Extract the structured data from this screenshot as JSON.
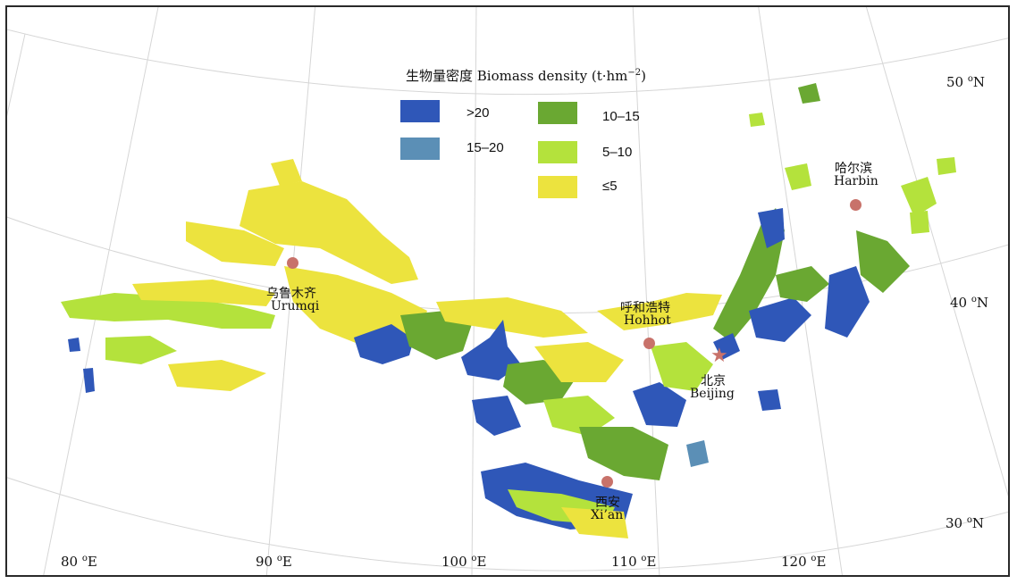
{
  "legend": {
    "title": "生物量密度 Biomass density (t·hm",
    "title_unit_sup": "−2",
    "title_close": ")",
    "items": [
      {
        "label": ">20",
        "color": "#2f57b8"
      },
      {
        "label": "15–20",
        "color": "#5b8fb6"
      },
      {
        "label": "10–15",
        "color": "#6aa832"
      },
      {
        "label": "5–10",
        "color": "#b4e23c"
      },
      {
        "label": "≤5",
        "color": "#ece33e"
      }
    ]
  },
  "cities": [
    {
      "cn": "乌鲁木齐",
      "en": "Urumqi"
    },
    {
      "cn": "呼和浩特",
      "en": "Hohhot"
    },
    {
      "cn": "北京",
      "en": "Beijing"
    },
    {
      "cn": "哈尔滨",
      "en": "Harbin"
    },
    {
      "cn": "西安",
      "en": "Xi’an"
    }
  ],
  "latitudes": [
    {
      "value": "50",
      "unit": "N"
    },
    {
      "value": "40",
      "unit": "N"
    },
    {
      "value": "30",
      "unit": "N"
    }
  ],
  "longitudes": [
    {
      "value": "80",
      "unit": "E"
    },
    {
      "value": "90",
      "unit": "E"
    },
    {
      "value": "100",
      "unit": "E"
    },
    {
      "value": "110",
      "unit": "E"
    },
    {
      "value": "120",
      "unit": "E"
    }
  ],
  "degree_symbol": "o",
  "colors": {
    "graticule": "#d6d6d6",
    "city_marker": "#c8726a",
    "frame": "#2a2a2a"
  }
}
